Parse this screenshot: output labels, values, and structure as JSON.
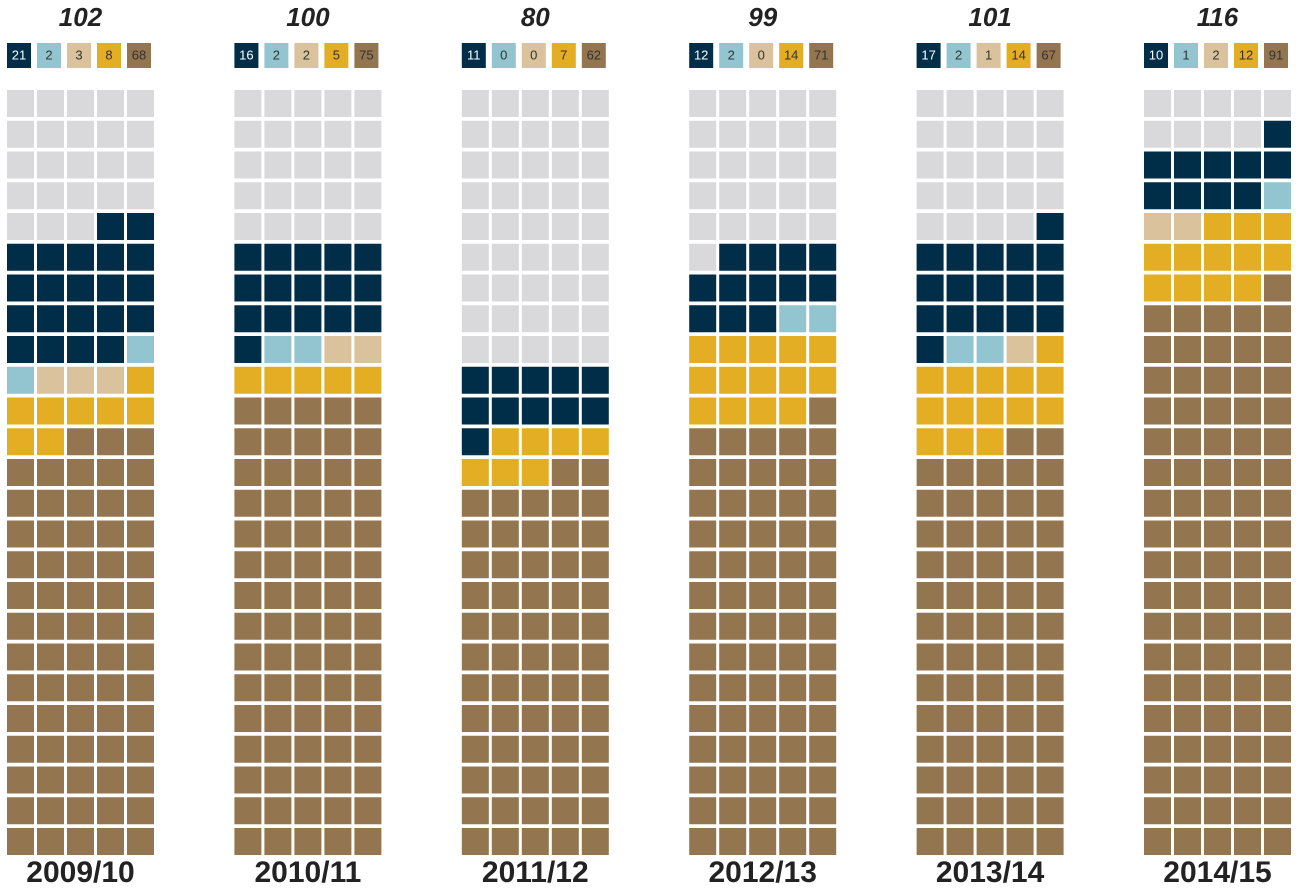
{
  "chart_data": {
    "type": "waffle",
    "colors": [
      "#002d47",
      "#92c5cf",
      "#d9c29c",
      "#e3ad24",
      "#93754f"
    ],
    "empty_color": "#d9d9db",
    "grid_cols": 5,
    "grid_rows": 25,
    "panels": [
      {
        "total": 102,
        "counts": [
          21,
          2,
          3,
          8,
          68
        ],
        "label": "2009/10"
      },
      {
        "total": 100,
        "counts": [
          16,
          2,
          2,
          5,
          75
        ],
        "label": "2010/11"
      },
      {
        "total": 80,
        "counts": [
          11,
          0,
          0,
          7,
          62
        ],
        "label": "2011/12"
      },
      {
        "total": 99,
        "counts": [
          12,
          2,
          0,
          14,
          71
        ],
        "label": "2012/13"
      },
      {
        "total": 101,
        "counts": [
          17,
          2,
          1,
          14,
          67
        ],
        "label": "2013/14"
      },
      {
        "total": 116,
        "counts": [
          10,
          1,
          2,
          12,
          91
        ],
        "label": "2014/15"
      }
    ]
  }
}
